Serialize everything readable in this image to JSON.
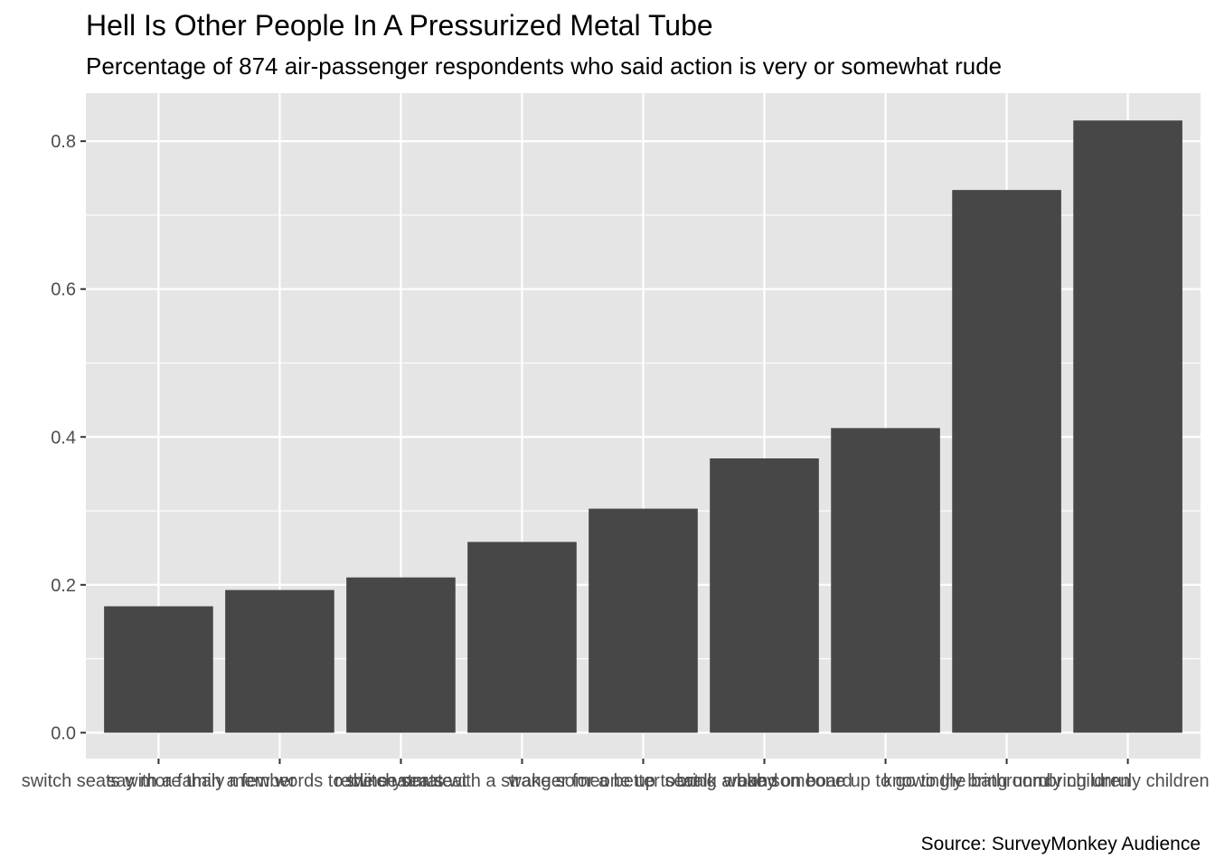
{
  "chart_data": {
    "type": "bar",
    "title": "Hell Is Other People In A Pressurized Metal Tube",
    "subtitle": "Percentage of 874 air-passenger respondents who said action is very or somewhat rude",
    "caption": "Source: SurveyMonkey Audience",
    "xlabel": "",
    "ylabel": "",
    "categories": [
      "switch seats with a family member",
      "say more than a few words to the seatmate",
      "recline your seat",
      "switch seats with a stranger for a better seat",
      "wake someone up to walk around",
      "bring a baby on board",
      "wake someone up to go to the bathroom",
      "knowingly bring unruly children",
      "bring unruly children"
    ],
    "values": [
      0.171,
      0.193,
      0.21,
      0.258,
      0.303,
      0.371,
      0.412,
      0.734,
      0.828
    ],
    "ylim": [
      -0.035,
      0.865
    ],
    "yticks": [
      0.0,
      0.2,
      0.4,
      0.6,
      0.8
    ],
    "ytick_labels": [
      "0.0",
      "0.2",
      "0.4",
      "0.6",
      "0.8"
    ],
    "grid": true,
    "colors": {
      "bar": "#474747",
      "panel": "#e5e5e5",
      "grid_major": "#ffffff",
      "tick_text": "#4d4d4d",
      "tick_mark": "#333333"
    }
  }
}
